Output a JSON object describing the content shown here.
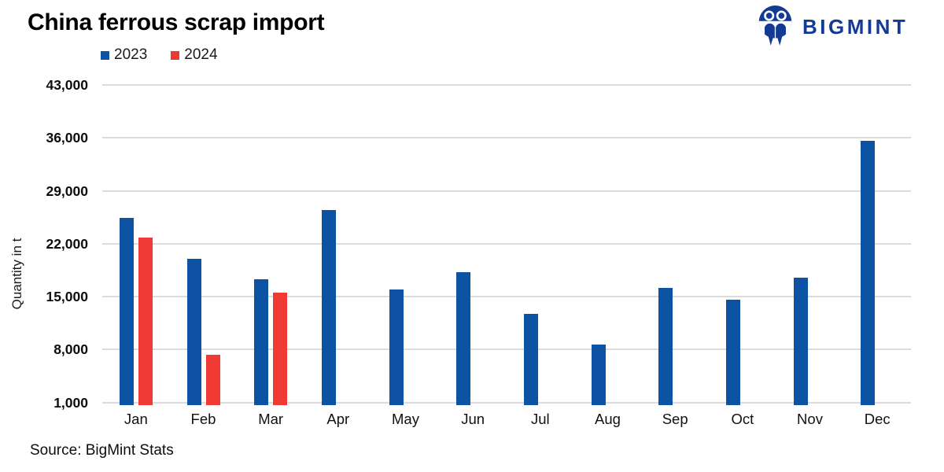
{
  "title": "China ferrous scrap import",
  "logo": {
    "text": "BIGMINT"
  },
  "source": "Source: BigMint Stats",
  "colors": {
    "series_2023": "#0e52a3",
    "series_2024": "#ee3a33",
    "gridline": "#dcdcdc",
    "logo_navy": "#143b94"
  },
  "chart_data": {
    "type": "bar",
    "title": "China ferrous scrap import",
    "xlabel": "",
    "ylabel": "Quantity in t",
    "categories": [
      "Jan",
      "Feb",
      "Mar",
      "Apr",
      "May",
      "Jun",
      "Jul",
      "Aug",
      "Sep",
      "Oct",
      "Nov",
      "Dec"
    ],
    "series": [
      {
        "name": "2023",
        "color": "#0e52a3",
        "values": [
          25400,
          20000,
          17300,
          26500,
          15900,
          18200,
          12700,
          8600,
          16100,
          14600,
          17500,
          35600
        ]
      },
      {
        "name": "2024",
        "color": "#ee3a33",
        "values": [
          22800,
          7300,
          15500,
          null,
          null,
          null,
          null,
          null,
          null,
          null,
          null,
          null
        ]
      }
    ],
    "ylim": [
      1000,
      43000
    ],
    "yticks": [
      43000,
      36000,
      29000,
      22000,
      15000,
      8000,
      1000
    ],
    "ytick_labels": [
      "43,000",
      "36,000",
      "29,000",
      "22,000",
      "15,000",
      "8,000",
      "1,000"
    ],
    "grid": "horizontal",
    "legend_position": "top-left"
  }
}
